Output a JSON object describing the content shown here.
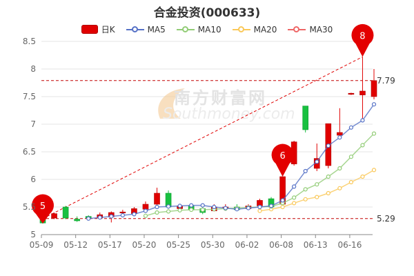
{
  "chart_data": {
    "type": "candlestick",
    "title": "合金投资(000633)",
    "legend": [
      {
        "name": "日K",
        "color": "#e00000"
      },
      {
        "name": "MA5",
        "color": "#5470c6"
      },
      {
        "name": "MA10",
        "color": "#91cc75"
      },
      {
        "name": "MA20",
        "color": "#fac858"
      },
      {
        "name": "MA30",
        "color": "#ee6666"
      }
    ],
    "legend_position": "top-center",
    "ylim": [
      5,
      8.5
    ],
    "y_ticks": [
      "5",
      "5.5",
      "6",
      "6.5",
      "7",
      "7.5",
      "8",
      "8.5"
    ],
    "x_ticks": [
      "05-09",
      "05-12",
      "05-17",
      "05-20",
      "05-25",
      "05-30",
      "06-02",
      "06-08",
      "06-13",
      "06-16"
    ],
    "up_color": "#e00000",
    "down_color": "#18c040",
    "grid": true,
    "candles": [
      {
        "o": 5.37,
        "c": 5.21,
        "h": 5.4,
        "l": 5.2
      },
      {
        "o": 5.3,
        "c": 5.38,
        "h": 5.4,
        "l": 5.28
      },
      {
        "o": 5.5,
        "c": 5.3,
        "h": 5.52,
        "l": 5.28
      },
      {
        "o": 5.28,
        "c": 5.25,
        "h": 5.33,
        "l": 5.23
      },
      {
        "o": 5.33,
        "c": 5.3,
        "h": 5.35,
        "l": 5.26
      },
      {
        "o": 5.3,
        "c": 5.36,
        "h": 5.4,
        "l": 5.28
      },
      {
        "o": 5.32,
        "c": 5.4,
        "h": 5.42,
        "l": 5.22
      },
      {
        "o": 5.4,
        "c": 5.41,
        "h": 5.45,
        "l": 5.36
      },
      {
        "o": 5.38,
        "c": 5.47,
        "h": 5.5,
        "l": 5.34
      },
      {
        "o": 5.46,
        "c": 5.55,
        "h": 5.6,
        "l": 5.44
      },
      {
        "o": 5.55,
        "c": 5.75,
        "h": 5.85,
        "l": 5.5
      },
      {
        "o": 5.75,
        "c": 5.5,
        "h": 5.8,
        "l": 5.47
      },
      {
        "o": 5.47,
        "c": 5.52,
        "h": 5.55,
        "l": 5.45
      },
      {
        "o": 5.52,
        "c": 5.45,
        "h": 5.56,
        "l": 5.42
      },
      {
        "o": 5.47,
        "c": 5.4,
        "h": 5.5,
        "l": 5.37
      },
      {
        "o": 5.43,
        "c": 5.5,
        "h": 5.55,
        "l": 5.42
      },
      {
        "o": 5.48,
        "c": 5.5,
        "h": 5.55,
        "l": 5.45
      },
      {
        "o": 5.5,
        "c": 5.45,
        "h": 5.55,
        "l": 5.43
      },
      {
        "o": 5.47,
        "c": 5.52,
        "h": 5.55,
        "l": 5.45
      },
      {
        "o": 5.52,
        "c": 5.62,
        "h": 5.65,
        "l": 5.5
      },
      {
        "o": 5.65,
        "c": 5.5,
        "h": 5.68,
        "l": 5.48
      },
      {
        "o": 5.55,
        "c": 6.05,
        "h": 6.05,
        "l": 5.53
      },
      {
        "o": 6.28,
        "c": 6.68,
        "h": 6.7,
        "l": 6.25
      },
      {
        "o": 7.33,
        "c": 6.9,
        "h": 7.33,
        "l": 6.85
      },
      {
        "o": 6.2,
        "c": 6.38,
        "h": 6.65,
        "l": 6.15
      },
      {
        "o": 6.25,
        "c": 7.01,
        "h": 7.01,
        "l": 6.2
      },
      {
        "o": 6.8,
        "c": 6.85,
        "h": 7.29,
        "l": 6.8
      },
      {
        "o": 7.55,
        "c": 7.56,
        "h": 7.57,
        "l": 7.53
      },
      {
        "o": 7.53,
        "c": 7.6,
        "h": 8.22,
        "l": 7.08
      },
      {
        "o": 7.5,
        "c": 7.79,
        "h": 8.0,
        "l": 7.45
      }
    ],
    "ma5": [
      null,
      null,
      null,
      null,
      5.29,
      5.31,
      5.33,
      5.35,
      5.37,
      5.43,
      5.5,
      5.51,
      5.52,
      5.53,
      5.53,
      5.5,
      5.48,
      5.46,
      5.48,
      5.5,
      5.52,
      5.62,
      5.87,
      6.15,
      6.32,
      6.61,
      6.76,
      6.94,
      7.07,
      7.36
    ],
    "ma10": [
      null,
      null,
      null,
      null,
      null,
      null,
      null,
      null,
      null,
      5.34,
      5.4,
      5.42,
      5.44,
      5.45,
      5.45,
      5.46,
      5.47,
      5.48,
      5.49,
      5.5,
      5.51,
      5.57,
      5.67,
      5.82,
      5.91,
      6.05,
      6.2,
      6.41,
      6.62,
      6.83
    ],
    "ma20": [
      null,
      null,
      null,
      null,
      null,
      null,
      null,
      null,
      null,
      null,
      null,
      null,
      null,
      null,
      null,
      null,
      null,
      null,
      null,
      5.43,
      5.46,
      5.5,
      5.57,
      5.64,
      5.68,
      5.75,
      5.84,
      5.95,
      6.05,
      6.17
    ],
    "ma30": [],
    "hline_high": {
      "label": "7.79",
      "value": 7.79
    },
    "hline_low": {
      "label": "5.29",
      "value": 5.29
    },
    "markers": [
      {
        "label": "5",
        "index": 0,
        "value": 5.2,
        "position": "below"
      },
      {
        "label": "6",
        "index": 21,
        "value": 6.05,
        "position": "above"
      },
      {
        "label": "8",
        "index": 28,
        "value": 8.22,
        "position": "above"
      }
    ],
    "watermark": {
      "cn": "南方财富网",
      "en": "Southmoney.com"
    }
  }
}
